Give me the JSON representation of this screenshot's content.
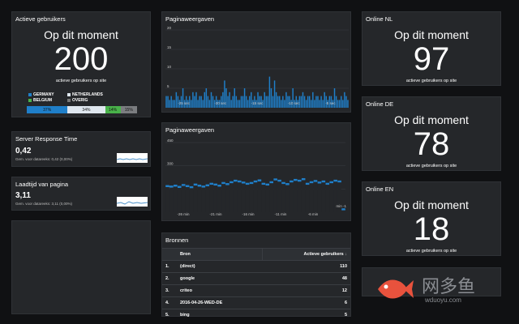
{
  "users_panel": {
    "title": "Actieve gebruikers",
    "heading": "Op dit moment",
    "value": "200",
    "subtitle": "actieve gebruikers op site",
    "legend": [
      {
        "label": "GERMANY",
        "color": "#1f7fc9"
      },
      {
        "label": "NETHERLANDS",
        "color": "#dfe7ef"
      },
      {
        "label": "BELGIUM",
        "color": "#49b24a"
      },
      {
        "label": "OVERIG",
        "color": "#777777"
      }
    ],
    "bar": [
      {
        "label": "37%",
        "value": 37,
        "color": "#1f7fc9"
      },
      {
        "label": "34%",
        "value": 34,
        "color": "#dfe7ef"
      },
      {
        "label": "14%",
        "value": 14,
        "color": "#49b24a"
      },
      {
        "label": "15%",
        "value": 15,
        "color": "#7b7d80"
      }
    ]
  },
  "server_panel": {
    "title": "Server Response Time",
    "value": "0,42",
    "sub": "Gem. voor datareeks: 0,42 (0,00%)"
  },
  "load_panel": {
    "title": "Laadtijd van pagina",
    "value": "3,11",
    "sub": "Gem. voor datareeks: 3,11 (0,00%)"
  },
  "pageviews1": {
    "title": "Paginaweergaven",
    "yticks": [
      "20",
      "15",
      "10",
      "5"
    ],
    "xticks": [
      "-25 sec",
      "-20 sec",
      "-15 sec",
      "-10 sec",
      "-5 sec"
    ]
  },
  "pageviews2": {
    "title": "Paginaweergaven",
    "yticks": [
      "450",
      "300",
      "150"
    ],
    "xticks": [
      "-26 min",
      "-21 min",
      "-16 min",
      "-11 min",
      "-6 min"
    ],
    "last_tick": "min -1"
  },
  "sources": {
    "title": "Bronnen",
    "col_source": "Bron",
    "col_users": "Actieve gebruikers",
    "sort_icon": "arrow-down-icon",
    "rows": [
      {
        "n": "1.",
        "source": "(direct)",
        "users": "110"
      },
      {
        "n": "2.",
        "source": "google",
        "users": "48"
      },
      {
        "n": "3.",
        "source": "criteo",
        "users": "12"
      },
      {
        "n": "4.",
        "source": "2016-04-26-WED-DE",
        "users": "6"
      },
      {
        "n": "5.",
        "source": "bing",
        "users": "5"
      }
    ]
  },
  "online_nl": {
    "title": "Online NL",
    "heading": "Op dit moment",
    "value": "97",
    "subtitle": "actieve gebruikers op site"
  },
  "online_de": {
    "title": "Online DE",
    "heading": "Op dit moment",
    "value": "78",
    "subtitle": "actieve gebruikers op site"
  },
  "online_en": {
    "title": "Online EN",
    "heading": "Op dit moment",
    "value": "18",
    "subtitle": "actieve gebruikers op site"
  },
  "watermark": {
    "brand": "网多鱼",
    "url": "wduoyu.com"
  },
  "chart_data": [
    {
      "type": "bar",
      "title": "Paginaweergaven",
      "ylim": [
        0,
        20
      ],
      "values": [
        3,
        3,
        2,
        3,
        2,
        2,
        4,
        3,
        2,
        3,
        5,
        2,
        3,
        2,
        3,
        2,
        4,
        3,
        4,
        2,
        3,
        3,
        2,
        4,
        5,
        3,
        2,
        4,
        3,
        2,
        3,
        2,
        2,
        3,
        4,
        7,
        5,
        3,
        4,
        2,
        3,
        5,
        3,
        2,
        2,
        3,
        3,
        5,
        3,
        2,
        3,
        4,
        2,
        3,
        2,
        4,
        3,
        3,
        2,
        4,
        3,
        3,
        8,
        5,
        3,
        7,
        4,
        3,
        3,
        2,
        3,
        2,
        4,
        3,
        3,
        2,
        5,
        2,
        3,
        2,
        3,
        3,
        4,
        3,
        2,
        3,
        3,
        2,
        4,
        2,
        3,
        3,
        2,
        3,
        2,
        4,
        3,
        2,
        3,
        3,
        2,
        5,
        3,
        2,
        2,
        3,
        2,
        4,
        3,
        2
      ]
    },
    {
      "type": "bar",
      "title": "Paginaweergaven",
      "ylim": [
        0,
        450
      ],
      "values": [
        175,
        172,
        178,
        170,
        182,
        175,
        168,
        185,
        178,
        172,
        180,
        190,
        185,
        178,
        195,
        188,
        200,
        210,
        205,
        198,
        190,
        195,
        205,
        212,
        190,
        185,
        200,
        218,
        210,
        195,
        188,
        205,
        215,
        210,
        220,
        190,
        200,
        208,
        198,
        205,
        190,
        200,
        210,
        205,
        25
      ]
    }
  ]
}
